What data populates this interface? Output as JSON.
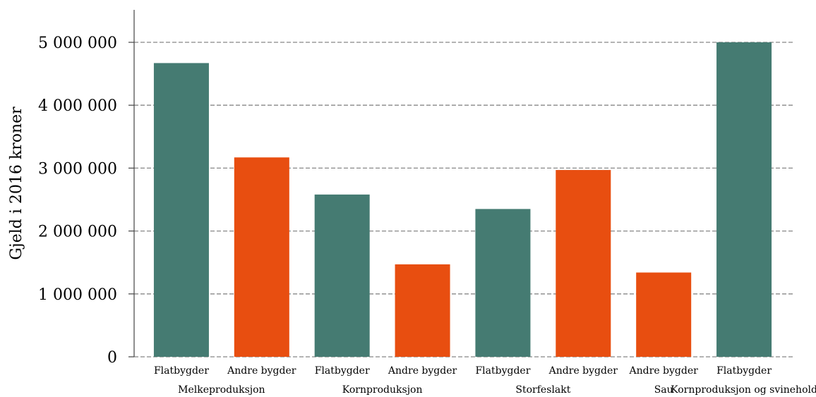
{
  "chart_data": {
    "type": "bar",
    "ylabel": "Gjeld i 2016 kroner",
    "ylim": [
      0,
      5000000
    ],
    "yticks": [
      0,
      1000000,
      2000000,
      3000000,
      4000000,
      5000000
    ],
    "ytick_labels": [
      "0",
      "1 000 000",
      "2 000 000",
      "3 000 000",
      "4 000 000",
      "5 000 000"
    ],
    "grid": true,
    "colors": {
      "Flatbygder": "#457b72",
      "Andre bygder": "#e84e10"
    },
    "categories": [
      "Flatbygder",
      "Andre bygder",
      "Flatbygder",
      "Andre bygder",
      "Flatbygder",
      "Andre bygder",
      "Andre bygder",
      "Flatbygder"
    ],
    "values": [
      4670000,
      3170000,
      2580000,
      1470000,
      2350000,
      2970000,
      1340000,
      5000000
    ],
    "groups": [
      {
        "label": "Melkeproduksjon",
        "bars": [
          0,
          1
        ]
      },
      {
        "label": "Kornproduksjon",
        "bars": [
          2,
          3
        ]
      },
      {
        "label": "Storfeslakt",
        "bars": [
          4,
          5
        ]
      },
      {
        "label": "Sau",
        "bars": [
          6
        ]
      },
      {
        "label": "Kornproduksjon og svinehold",
        "bars": [
          7
        ]
      }
    ]
  }
}
